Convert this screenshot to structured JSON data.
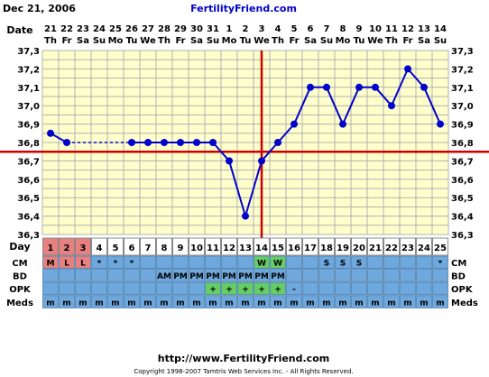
{
  "header": {
    "date": "Dec 21, 2006",
    "site": "FertilityFriend.com"
  },
  "footer": {
    "url": "http://www.FertilityFriend.com",
    "copyright": "Copyright 1998-2007 Tamtris Web Services Inc. - All Rights Reserved."
  },
  "labels": {
    "date": "Date",
    "day": "Day",
    "cm": "CM",
    "bd": "BD",
    "opk": "OPK",
    "meds": "Meds"
  },
  "colors": {
    "plot_bg": "#ffffcc",
    "grid": "#b0b0b0",
    "line": "#0000cc",
    "coverline": "#cc0000",
    "ovulation_line": "#cc0000",
    "row_bg": "#6fa8dc",
    "menses": "#e88080",
    "cm_highlight": "#66cc66",
    "opk_positive": "#66cc66",
    "header_blue": "#0000cc",
    "header_red": "#cc0000"
  },
  "chart_data": {
    "type": "line",
    "title": "",
    "ylabel": "",
    "ylim": [
      36.3,
      37.3
    ],
    "yticks": [
      "37,3",
      "37,2",
      "37,1",
      "37,0",
      "36,9",
      "36,8",
      "36,7",
      "36,6",
      "36,5",
      "36,4",
      "36,3"
    ],
    "dates": [
      "21",
      "22",
      "23",
      "24",
      "25",
      "26",
      "27",
      "28",
      "29",
      "30",
      "31",
      "1",
      "2",
      "3",
      "4",
      "5",
      "6",
      "7",
      "8",
      "9",
      "10",
      "11",
      "12",
      "13",
      "14"
    ],
    "weekdays": [
      "Th",
      "Fr",
      "Sa",
      "Su",
      "Mo",
      "Tu",
      "We",
      "Th",
      "Fr",
      "Sa",
      "Su",
      "Mo",
      "Tu",
      "We",
      "Th",
      "Fr",
      "Sa",
      "Su",
      "Mo",
      "Tu",
      "We",
      "Th",
      "Fr",
      "Sa",
      "Su"
    ],
    "cycle_days": [
      "1",
      "2",
      "3",
      "4",
      "5",
      "6",
      "7",
      "8",
      "9",
      "10",
      "11",
      "12",
      "13",
      "14",
      "15",
      "16",
      "17",
      "18",
      "19",
      "20",
      "21",
      "22",
      "23",
      "24",
      "25"
    ],
    "series": [
      {
        "values": [
          36.85,
          36.8,
          null,
          null,
          null,
          36.8,
          36.8,
          36.8,
          36.8,
          36.8,
          36.8,
          36.7,
          36.4,
          36.7,
          36.8,
          36.9,
          37.1,
          37.1,
          36.9,
          37.1,
          37.1,
          37.0,
          37.2,
          37.1,
          36.9
        ]
      }
    ],
    "dashed_gap": [
      2,
      6
    ],
    "coverline": 36.75,
    "ovulation_day": 14,
    "cm": [
      "M",
      "L",
      "L",
      "*",
      "*",
      "*",
      "",
      "",
      "",
      "",
      "",
      "",
      "",
      "W",
      "W",
      "",
      "",
      "S",
      "S",
      "S",
      "",
      "",
      "",
      "",
      "*"
    ],
    "bd": [
      "",
      "",
      "",
      "",
      "",
      "",
      "",
      "AM",
      "PM",
      "PM",
      "PM",
      "PM",
      "PM",
      "PM",
      "PM",
      "",
      "",
      "",
      "",
      "",
      "",
      "",
      "",
      "",
      ""
    ],
    "opk": [
      "",
      "",
      "",
      "",
      "",
      "",
      "",
      "",
      "",
      "",
      "+",
      "+",
      "+",
      "+",
      "+",
      "-",
      "",
      "",
      "",
      "",
      "",
      "",
      "",
      "",
      ""
    ],
    "meds": [
      "m",
      "m",
      "m",
      "m",
      "m",
      "m",
      "m",
      "m",
      "m",
      "m",
      "m",
      "m",
      "m",
      "m",
      "m",
      "m",
      "m",
      "m",
      "m",
      "m",
      "m",
      "m",
      "m",
      "m",
      "m"
    ],
    "menses_days": [
      1,
      2,
      3
    ],
    "cm_highlight_days": [
      14,
      15
    ],
    "opk_positive_days": [
      11,
      12,
      13,
      14,
      15
    ]
  }
}
